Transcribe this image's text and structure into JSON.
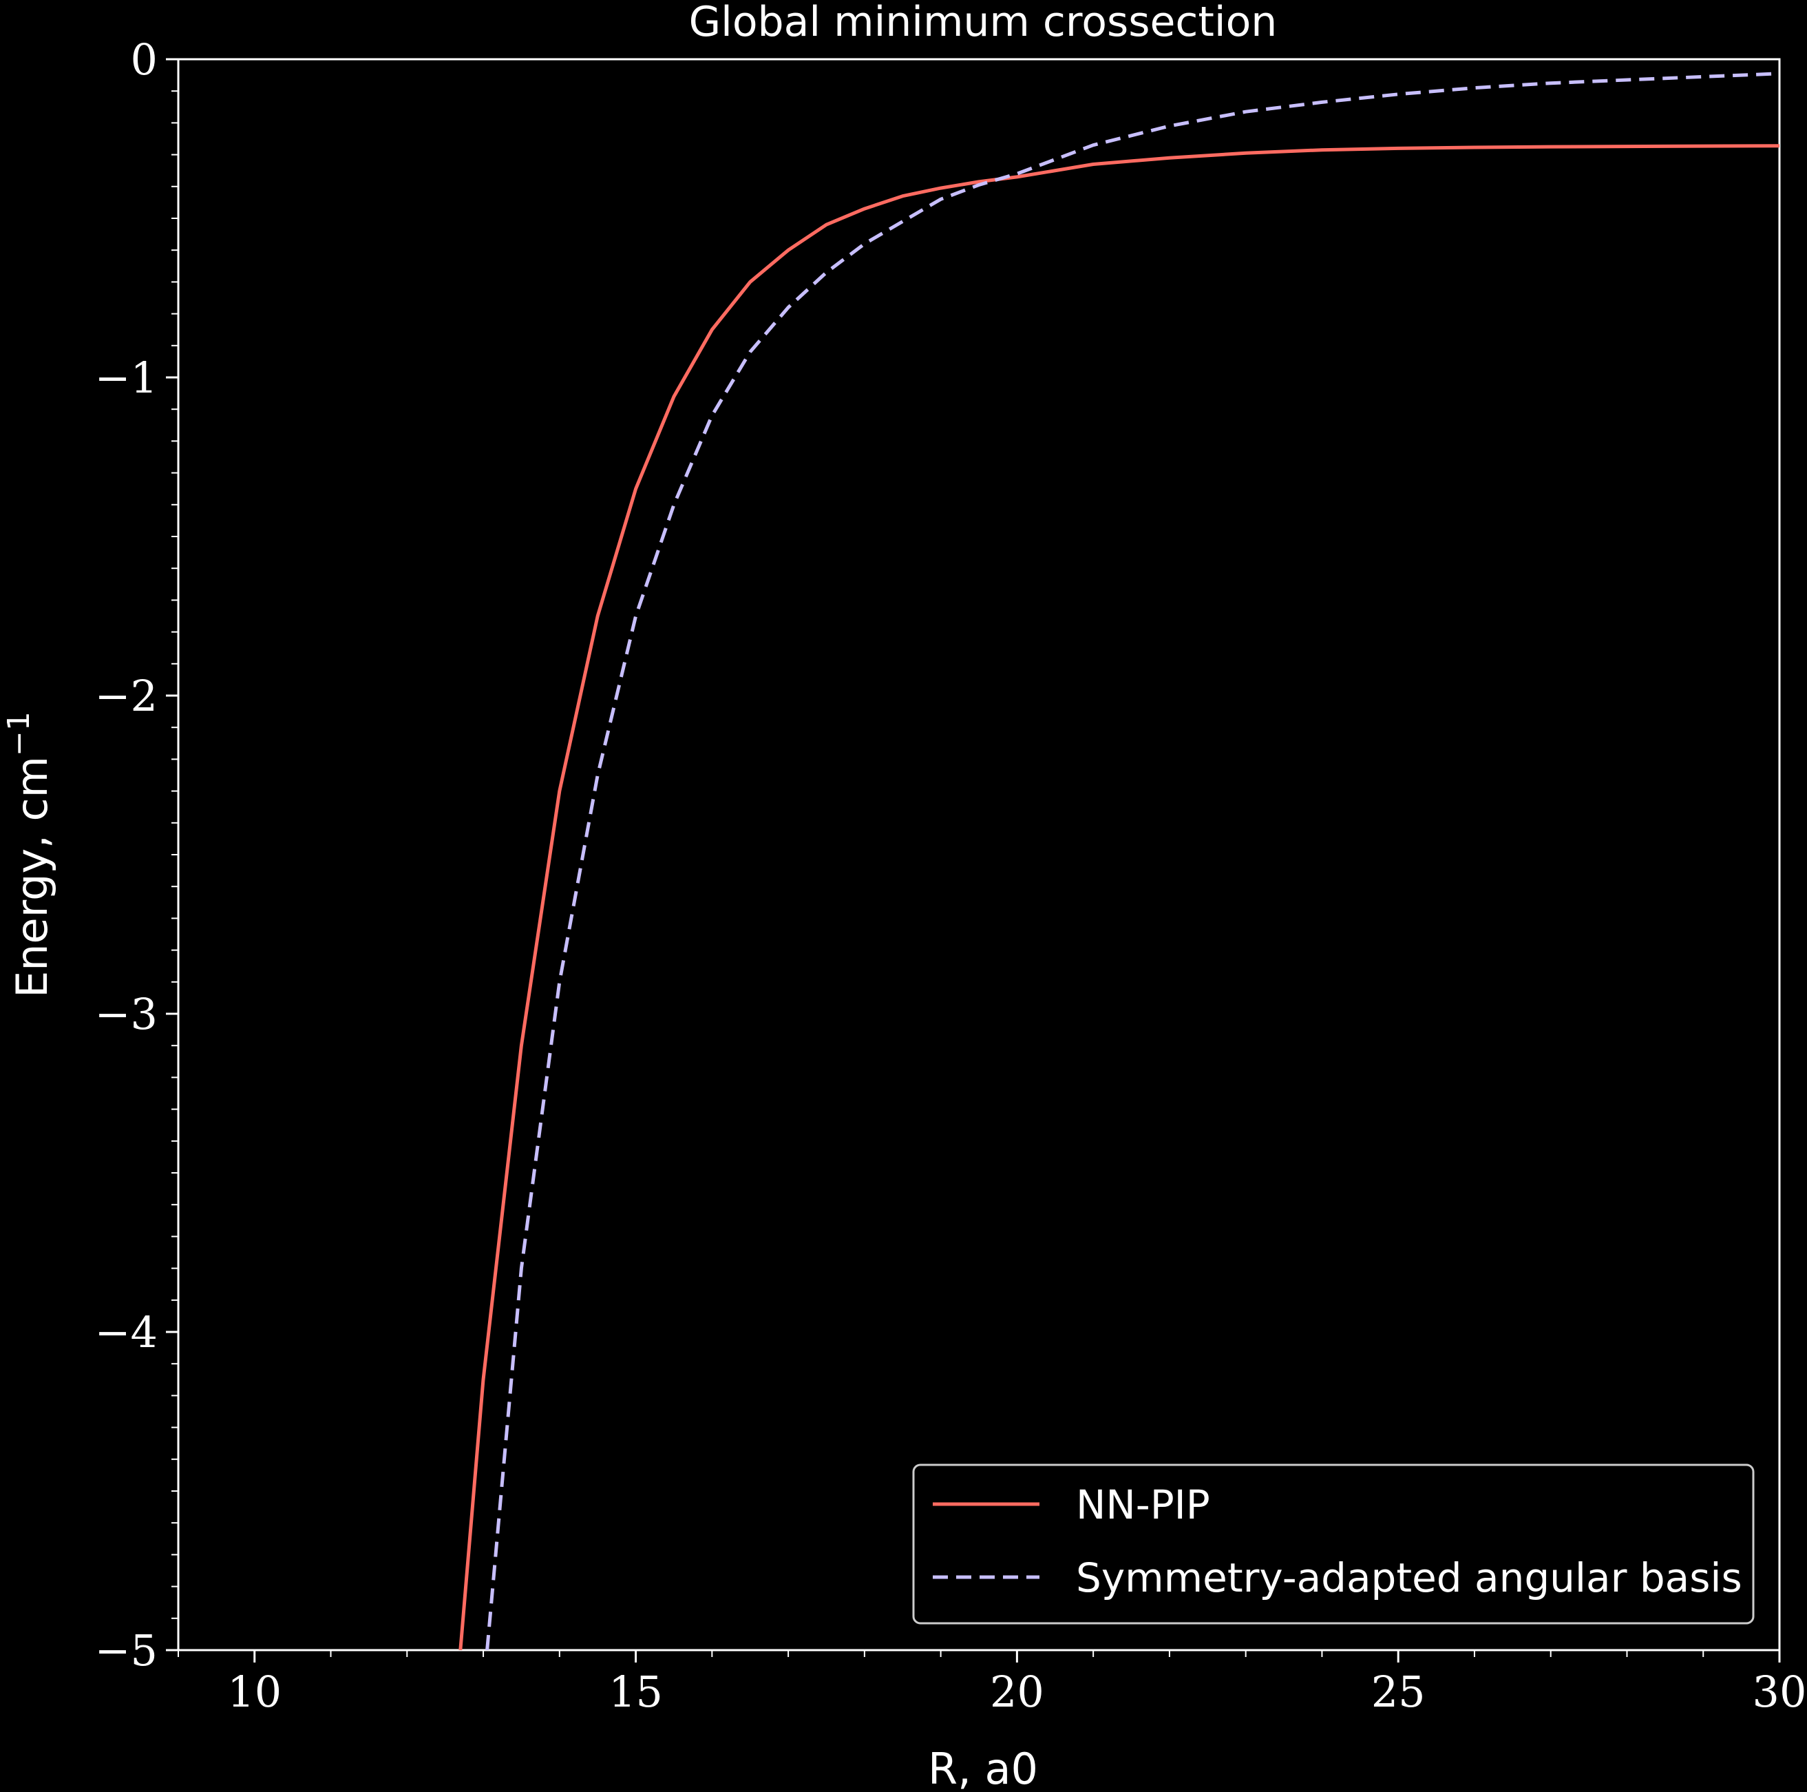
{
  "chart_data": {
    "type": "line",
    "title": "Global minimum crossection",
    "xlabel": "R, a0",
    "ylabel_text": "Energy, cm",
    "ylabel_sup": "−1",
    "xlim": [
      9,
      30
    ],
    "ylim": [
      -5,
      0
    ],
    "x_ticks": [
      10,
      15,
      20,
      25,
      30
    ],
    "x_tick_labels": [
      "10",
      "15",
      "20",
      "25",
      "30"
    ],
    "y_ticks": [
      0,
      -1,
      -2,
      -3,
      -4,
      -5
    ],
    "y_tick_labels": [
      "0",
      "−1",
      "−2",
      "−3",
      "−4",
      "−5"
    ],
    "grid": false,
    "legend_position": "lower-right",
    "series": [
      {
        "name": "NN-PIP",
        "color": "#ff6b61",
        "style": "solid",
        "x": [
          12.7,
          13.0,
          13.5,
          14.0,
          14.5,
          15.0,
          15.5,
          16.0,
          16.5,
          17.0,
          17.5,
          18.0,
          18.5,
          19.0,
          19.5,
          20.0,
          21.0,
          22.0,
          23.0,
          24.0,
          25.0,
          26.0,
          27.0,
          28.0,
          29.0,
          30.0
        ],
        "y": [
          -5.0,
          -4.15,
          -3.1,
          -2.3,
          -1.75,
          -1.35,
          -1.06,
          -0.85,
          -0.7,
          -0.6,
          -0.52,
          -0.47,
          -0.43,
          -0.405,
          -0.385,
          -0.37,
          -0.33,
          -0.31,
          -0.295,
          -0.285,
          -0.28,
          -0.277,
          -0.275,
          -0.274,
          -0.273,
          -0.272
        ]
      },
      {
        "name": "Symmetry-adapted angular basis",
        "color": "#c8bfff",
        "style": "dashed",
        "x": [
          13.05,
          13.5,
          14.0,
          14.5,
          15.0,
          15.5,
          16.0,
          16.5,
          17.0,
          17.5,
          18.0,
          18.5,
          19.0,
          19.5,
          20.0,
          21.0,
          22.0,
          23.0,
          24.0,
          25.0,
          26.0,
          27.0,
          28.0,
          29.0,
          30.0
        ],
        "y": [
          -5.0,
          -3.8,
          -2.9,
          -2.25,
          -1.75,
          -1.4,
          -1.12,
          -0.92,
          -0.78,
          -0.67,
          -0.58,
          -0.51,
          -0.44,
          -0.395,
          -0.36,
          -0.27,
          -0.21,
          -0.165,
          -0.135,
          -0.11,
          -0.09,
          -0.075,
          -0.065,
          -0.055,
          -0.045
        ]
      }
    ]
  }
}
